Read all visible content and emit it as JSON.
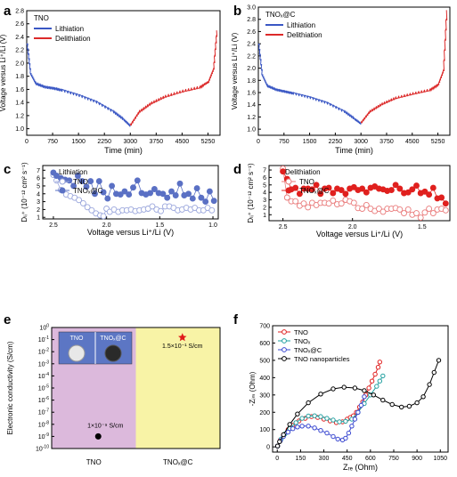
{
  "panels": {
    "a": {
      "letter": "a"
    },
    "b": {
      "letter": "b"
    },
    "c": {
      "letter": "c"
    },
    "d": {
      "letter": "d"
    },
    "e": {
      "letter": "e"
    },
    "f": {
      "letter": "f"
    }
  },
  "colors": {
    "lithiation": "#3a57c4",
    "delithiation": "#dc2a2a",
    "tno_open_blue": "#9aa6dc",
    "tnox_c_blue": "#5a70c4",
    "tno_open_red": "#e97a7a",
    "tnox_c_red": "#e0201e",
    "pink_region": "#dcb9dc",
    "yellow_region": "#f8f3a6",
    "inset_bg": "#5c76c4",
    "eis_tno": "#e02020",
    "eis_tnox": "#22a0a0",
    "eis_tnox_c": "#3a48d0",
    "eis_np": "#000000"
  },
  "chart_data": [
    {
      "panel": "a",
      "type": "line",
      "legend_title": "TNO",
      "xlabel": "Time (min)",
      "ylabel": "Voltage versus Li⁺/Li (V)",
      "xlim": [
        0,
        5600
      ],
      "ylim": [
        0.9,
        2.8
      ],
      "xticks": [
        0,
        750,
        1500,
        2250,
        3000,
        3750,
        4500,
        5250
      ],
      "yticks": [
        1.0,
        1.2,
        1.4,
        1.6,
        1.8,
        2.0,
        2.2,
        2.4,
        2.6,
        2.8
      ],
      "legend": "top-left",
      "series": [
        {
          "name": "Lithiation",
          "x": [
            0,
            100,
            250,
            500,
            750,
            1000,
            1500,
            2000,
            2500,
            2800,
            3000
          ],
          "y": [
            2.3,
            1.85,
            1.7,
            1.65,
            1.63,
            1.6,
            1.52,
            1.42,
            1.27,
            1.15,
            1.05
          ]
        },
        {
          "name": "Delithiation",
          "x": [
            3000,
            3250,
            3600,
            4000,
            4500,
            5000,
            5250,
            5400,
            5500
          ],
          "y": [
            1.05,
            1.25,
            1.38,
            1.48,
            1.56,
            1.62,
            1.7,
            1.9,
            2.5
          ]
        }
      ]
    },
    {
      "panel": "b",
      "type": "line",
      "legend_title": "TNOₓ@C",
      "xlabel": "Time (min)",
      "ylabel": "Voltage versus Li⁺/Li (V)",
      "xlim": [
        0,
        5600
      ],
      "ylim": [
        0.9,
        3.0
      ],
      "xticks": [
        0,
        750,
        1500,
        2250,
        3000,
        3750,
        4500,
        5250
      ],
      "yticks": [
        1.0,
        1.2,
        1.4,
        1.6,
        1.8,
        2.0,
        2.2,
        2.4,
        2.6,
        2.8,
        3.0
      ],
      "legend": "top-left",
      "series": [
        {
          "name": "Lithiation",
          "x": [
            0,
            100,
            250,
            500,
            750,
            1000,
            1500,
            2000,
            2500,
            2800,
            3000
          ],
          "y": [
            2.4,
            1.9,
            1.72,
            1.66,
            1.63,
            1.6,
            1.53,
            1.44,
            1.3,
            1.18,
            1.1
          ]
        },
        {
          "name": "Delithiation",
          "x": [
            3000,
            3250,
            3600,
            4000,
            4500,
            5000,
            5250,
            5400,
            5500
          ],
          "y": [
            1.1,
            1.28,
            1.4,
            1.5,
            1.57,
            1.63,
            1.72,
            1.95,
            2.95
          ]
        }
      ]
    },
    {
      "panel": "c",
      "type": "scatter",
      "legend_title": "Lithiation",
      "xlabel": "Voltage versus Li⁺/Li (V)",
      "ylabel": "Dₗᵢ⁺ (10⁻¹² cm² s⁻¹)",
      "xlim": [
        2.6,
        0.95
      ],
      "ylim": [
        0.8,
        7.6
      ],
      "xticks": [
        2.5,
        2.0,
        1.5,
        1.0
      ],
      "yticks": [
        1,
        2,
        3,
        4,
        5,
        6,
        7
      ],
      "legend": "top-left",
      "series": [
        {
          "name": "TNO",
          "x": [
            2.5,
            2.47,
            2.43,
            2.38,
            2.34,
            2.3,
            2.26,
            2.22,
            2.18,
            2.14,
            2.1,
            2.06,
            2.03,
            2.0,
            1.97,
            1.93,
            1.89,
            1.85,
            1.81,
            1.77,
            1.73,
            1.69,
            1.65,
            1.61,
            1.57,
            1.53,
            1.49,
            1.45,
            1.41,
            1.37,
            1.33,
            1.29,
            1.25,
            1.21,
            1.17,
            1.13,
            1.09,
            1.05,
            1.01
          ],
          "y": [
            6.4,
            5.7,
            4.5,
            3.9,
            3.7,
            3.5,
            3.2,
            2.8,
            2.3,
            1.9,
            1.5,
            1.25,
            1.15,
            2.1,
            1.7,
            2.0,
            1.7,
            1.9,
            1.9,
            2.0,
            1.8,
            1.9,
            2.0,
            2.1,
            2.4,
            2.0,
            1.8,
            2.4,
            2.4,
            2.2,
            1.9,
            2.0,
            2.2,
            2.0,
            2.2,
            1.9,
            1.9,
            2.2,
            1.9
          ]
        },
        {
          "name": "TNOₓ@C",
          "x": [
            2.5,
            2.47,
            2.43,
            2.39,
            2.35,
            2.31,
            2.27,
            2.23,
            2.19,
            2.15,
            2.11,
            2.07,
            2.03,
            1.99,
            1.95,
            1.91,
            1.87,
            1.83,
            1.79,
            1.75,
            1.71,
            1.67,
            1.63,
            1.59,
            1.55,
            1.51,
            1.47,
            1.43,
            1.39,
            1.35,
            1.31,
            1.27,
            1.23,
            1.19,
            1.15,
            1.11,
            1.07,
            1.03,
            0.99
          ],
          "y": [
            6.7,
            6.3,
            6.0,
            5.8,
            5.7,
            5.0,
            6.3,
            5.6,
            4.9,
            5.6,
            4.0,
            5.6,
            4.2,
            3.4,
            5.0,
            4.0,
            3.9,
            4.3,
            3.9,
            4.8,
            5.7,
            4.1,
            3.9,
            4.1,
            4.6,
            4.1,
            4.0,
            3.5,
            4.3,
            3.8,
            5.3,
            3.8,
            4.0,
            3.4,
            4.7,
            3.5,
            3.0,
            4.3,
            3.1
          ]
        }
      ]
    },
    {
      "panel": "d",
      "type": "scatter",
      "legend_title": "Delithiation",
      "xlabel": "Voltage versus Li⁺/Li (V)",
      "ylabel": "Dₗᵢ⁺ (10⁻¹² cm² s⁻¹)",
      "xlim": [
        2.6,
        1.3
      ],
      "ylim": [
        0.2,
        7.6
      ],
      "xticks": [
        2.5,
        2.0,
        1.5
      ],
      "yticks": [
        1,
        2,
        3,
        4,
        5,
        6,
        7
      ],
      "legend": "top-left",
      "series": [
        {
          "name": "TNO",
          "x": [
            2.5,
            2.47,
            2.44,
            2.41,
            2.38,
            2.35,
            2.32,
            2.29,
            2.26,
            2.23,
            2.2,
            2.17,
            2.14,
            2.11,
            2.08,
            2.05,
            2.02,
            1.99,
            1.96,
            1.93,
            1.9,
            1.87,
            1.84,
            1.81,
            1.78,
            1.75,
            1.72,
            1.69,
            1.66,
            1.63,
            1.6,
            1.57,
            1.54,
            1.51,
            1.48,
            1.45,
            1.42,
            1.39,
            1.36,
            1.33
          ],
          "y": [
            7.2,
            3.3,
            2.8,
            2.8,
            2.2,
            2.5,
            2.0,
            2.6,
            2.3,
            2.6,
            2.6,
            2.5,
            2.9,
            2.4,
            2.5,
            3.0,
            2.8,
            2.6,
            1.9,
            1.8,
            2.3,
            1.8,
            1.5,
            1.8,
            1.4,
            1.8,
            1.8,
            1.9,
            1.7,
            1.2,
            1.7,
            1.0,
            1.2,
            0.6,
            1.3,
            1.8,
            1.2,
            1.7,
            1.8,
            1.6
          ]
        },
        {
          "name": "TNOₓ@C",
          "x": [
            2.5,
            2.47,
            2.44,
            2.41,
            2.38,
            2.35,
            2.32,
            2.29,
            2.26,
            2.23,
            2.2,
            2.17,
            2.14,
            2.11,
            2.08,
            2.05,
            2.02,
            1.99,
            1.96,
            1.93,
            1.9,
            1.87,
            1.84,
            1.81,
            1.78,
            1.75,
            1.72,
            1.69,
            1.66,
            1.63,
            1.6,
            1.57,
            1.54,
            1.51,
            1.48,
            1.45,
            1.42,
            1.39,
            1.36,
            1.33
          ],
          "y": [
            6.8,
            5.8,
            4.4,
            4.6,
            3.8,
            4.5,
            4.5,
            4.4,
            5.0,
            3.8,
            4.5,
            4.6,
            3.9,
            4.5,
            4.3,
            3.8,
            4.5,
            4.7,
            4.3,
            4.5,
            4.0,
            4.6,
            4.8,
            4.5,
            4.4,
            4.2,
            4.3,
            5.0,
            4.5,
            3.9,
            4.0,
            4.4,
            4.9,
            3.9,
            4.1,
            3.7,
            4.6,
            3.2,
            3.3,
            2.5
          ]
        }
      ]
    },
    {
      "panel": "e",
      "type": "scatter",
      "ylabel": "Electronic conductivity (S/cm)",
      "categories": [
        "TNO",
        "TNOₓ@C"
      ],
      "yscale": "log",
      "ytick_exponents": [
        0,
        -1,
        -2,
        -3,
        -4,
        -5,
        -6,
        -7,
        -8,
        -9,
        -10
      ],
      "ylim_exponent": [
        -10,
        0
      ],
      "inset_labels": [
        "TNO",
        "TNOₓ@C"
      ],
      "points": [
        {
          "category": "TNO",
          "value": 1e-09,
          "label": "1×10⁻⁹ S/cm"
        },
        {
          "category": "TNOₓ@C",
          "value": 0.15,
          "label": "1.5×10⁻¹ S/cm"
        }
      ]
    },
    {
      "panel": "f",
      "type": "line",
      "xlabel": "Zᵣₑ (Ohm)",
      "ylabel": "-Zᵢₘ (Ohm)",
      "xlim": [
        -30,
        1100
      ],
      "ylim": [
        -30,
        700
      ],
      "xticks": [
        0,
        150,
        300,
        450,
        600,
        750,
        900,
        1050
      ],
      "yticks": [
        0,
        100,
        200,
        300,
        400,
        500,
        600,
        700
      ],
      "legend": "top-left",
      "series": [
        {
          "name": "TNO",
          "x": [
            2,
            20,
            40,
            70,
            100,
            140,
            180,
            220,
            260,
            300,
            340,
            380,
            420,
            450,
            470,
            490,
            510,
            530,
            550,
            570,
            590,
            610,
            630,
            650,
            660
          ],
          "y": [
            5,
            40,
            70,
            100,
            125,
            150,
            165,
            175,
            170,
            160,
            150,
            140,
            145,
            160,
            170,
            180,
            200,
            230,
            260,
            300,
            340,
            380,
            420,
            460,
            490
          ]
        },
        {
          "name": "TNOₓ",
          "x": [
            2,
            25,
            50,
            80,
            120,
            160,
            200,
            240,
            280,
            320,
            360,
            400,
            440,
            480,
            520,
            560,
            600,
            640,
            660,
            680
          ],
          "y": [
            5,
            45,
            75,
            105,
            140,
            165,
            178,
            180,
            175,
            165,
            155,
            145,
            148,
            160,
            200,
            250,
            300,
            350,
            380,
            410
          ]
        },
        {
          "name": "TNOₓ@C",
          "x": [
            2,
            20,
            40,
            70,
            100,
            130,
            160,
            200,
            240,
            280,
            320,
            360,
            390,
            420,
            440,
            460,
            480,
            500,
            520,
            540,
            560
          ],
          "y": [
            5,
            35,
            60,
            85,
            105,
            115,
            120,
            120,
            110,
            95,
            80,
            60,
            45,
            40,
            50,
            80,
            120,
            160,
            200,
            240,
            290
          ]
        },
        {
          "name": "TNO nanoparticles",
          "x": [
            2,
            15,
            40,
            80,
            130,
            200,
            280,
            360,
            430,
            500,
            560,
            620,
            680,
            740,
            800,
            850,
            900,
            940,
            980,
            1010,
            1040
          ],
          "y": [
            5,
            30,
            70,
            130,
            190,
            255,
            305,
            335,
            345,
            340,
            325,
            300,
            270,
            245,
            230,
            235,
            255,
            290,
            360,
            430,
            500
          ]
        }
      ]
    }
  ]
}
